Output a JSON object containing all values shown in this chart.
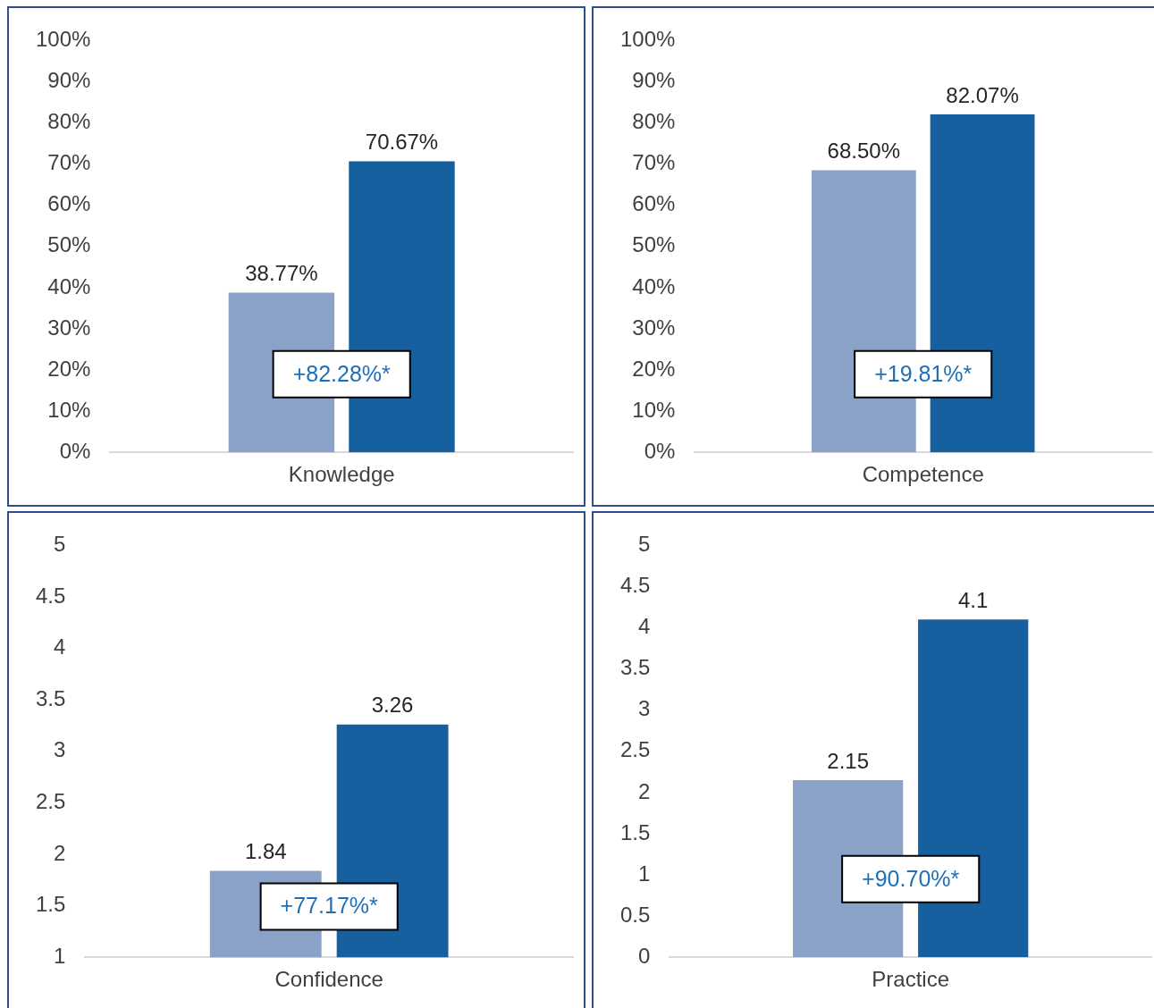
{
  "chart_data": [
    {
      "type": "bar",
      "categories": [
        "Knowledge"
      ],
      "series": [
        {
          "color": "#8aa2c8",
          "values": [
            38.77
          ],
          "value_labels": [
            "38.77%"
          ]
        },
        {
          "color": "#1660a0",
          "values": [
            70.67
          ],
          "value_labels": [
            "70.67%"
          ]
        }
      ],
      "ylim": [
        0,
        100
      ],
      "yticks": [
        {
          "value": 0,
          "label": "0%"
        },
        {
          "value": 10,
          "label": "10%"
        },
        {
          "value": 20,
          "label": "20%"
        },
        {
          "value": 30,
          "label": "30%"
        },
        {
          "value": 40,
          "label": "40%"
        },
        {
          "value": 50,
          "label": "50%"
        },
        {
          "value": 60,
          "label": "60%"
        },
        {
          "value": 70,
          "label": "70%"
        },
        {
          "value": 80,
          "label": "80%"
        },
        {
          "value": 90,
          "label": "90%"
        },
        {
          "value": 100,
          "label": "100%"
        }
      ],
      "annotations": [
        "+82.28%*"
      ],
      "grid": false,
      "legend": false
    },
    {
      "type": "bar",
      "categories": [
        "Competence"
      ],
      "series": [
        {
          "color": "#8aa2c8",
          "values": [
            68.5
          ],
          "value_labels": [
            "68.50%"
          ]
        },
        {
          "color": "#1660a0",
          "values": [
            82.07
          ],
          "value_labels": [
            "82.07%"
          ]
        }
      ],
      "ylim": [
        0,
        100
      ],
      "yticks": [
        {
          "value": 0,
          "label": "0%"
        },
        {
          "value": 10,
          "label": "10%"
        },
        {
          "value": 20,
          "label": "20%"
        },
        {
          "value": 30,
          "label": "30%"
        },
        {
          "value": 40,
          "label": "40%"
        },
        {
          "value": 50,
          "label": "50%"
        },
        {
          "value": 60,
          "label": "60%"
        },
        {
          "value": 70,
          "label": "70%"
        },
        {
          "value": 80,
          "label": "80%"
        },
        {
          "value": 90,
          "label": "90%"
        },
        {
          "value": 100,
          "label": "100%"
        }
      ],
      "annotations": [
        "+19.81%*"
      ],
      "grid": false,
      "legend": false
    },
    {
      "type": "bar",
      "categories": [
        "Confidence"
      ],
      "series": [
        {
          "color": "#8aa2c8",
          "values": [
            1.84
          ]
        },
        {
          "color": "#1660a0",
          "values": [
            3.26
          ]
        }
      ],
      "ylim": [
        1,
        5
      ],
      "yticks": [
        1,
        1.5,
        2,
        2.5,
        3,
        3.5,
        4,
        4.5,
        5
      ],
      "data_labels": true,
      "annotations": [
        "+77.17%*"
      ],
      "grid": false,
      "legend": false
    },
    {
      "type": "bar",
      "categories": [
        "Practice"
      ],
      "series": [
        {
          "color": "#8aa2c8",
          "values": [
            2.15
          ]
        },
        {
          "color": "#1660a0",
          "values": [
            4.1
          ]
        }
      ],
      "ylim": [
        0,
        5
      ],
      "yticks": [
        0,
        0.5,
        1,
        1.5,
        2,
        2.5,
        3,
        3.5,
        4,
        4.5,
        5
      ],
      "data_labels": true,
      "annotations": [
        "+90.70%*"
      ],
      "grid": false,
      "legend": false
    }
  ]
}
